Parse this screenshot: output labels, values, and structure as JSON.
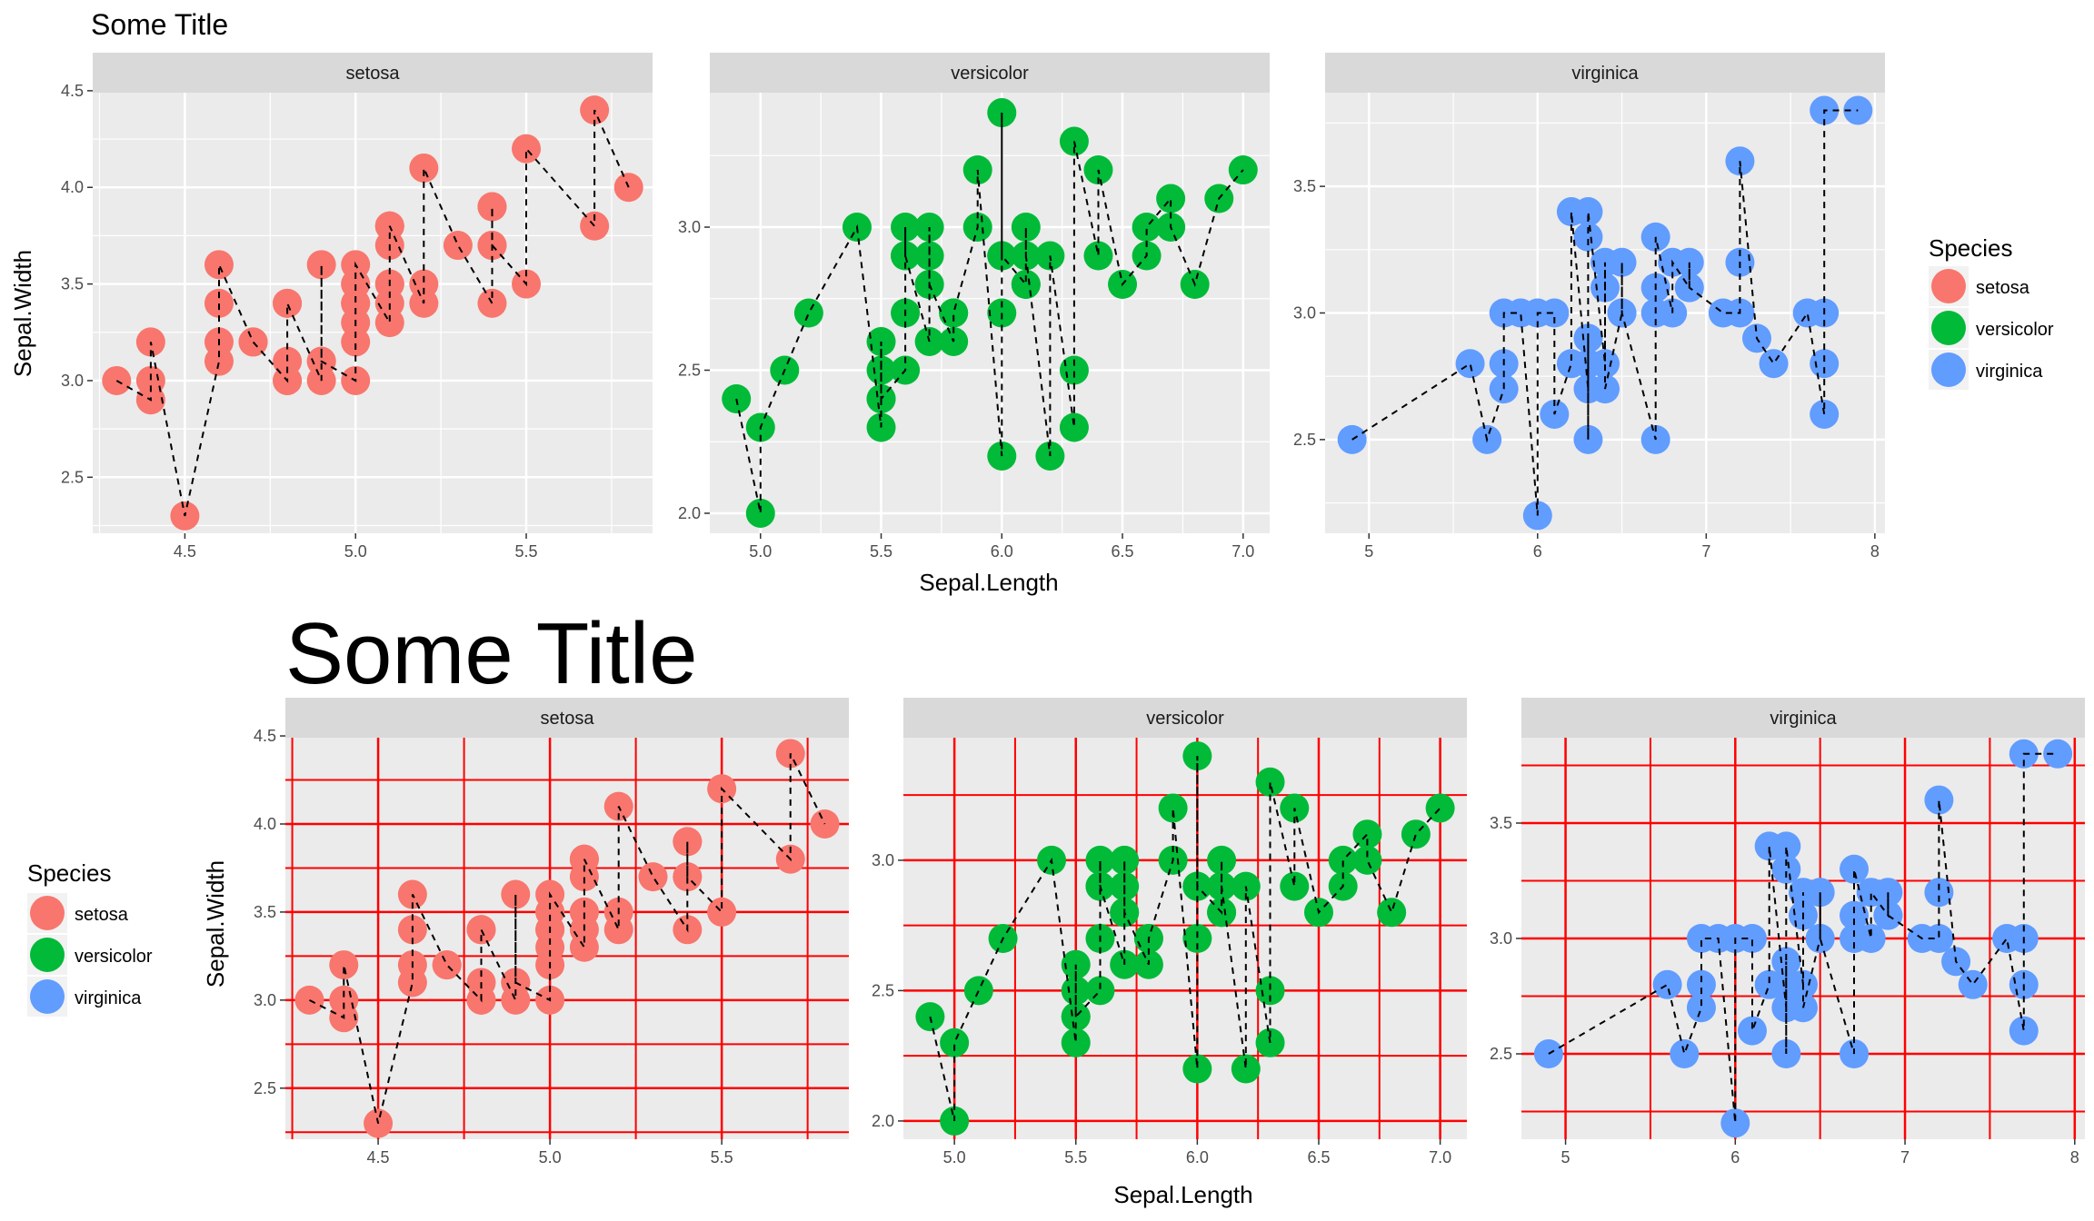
{
  "chart_data": [
    {
      "type": "scatter",
      "title": "Some Title",
      "xlabel": "Sepal.Length",
      "ylabel": "Sepal.Width",
      "grid_color": "#ffffff",
      "legend": {
        "title": "Species",
        "position": "right",
        "entries": [
          {
            "label": "setosa",
            "color": "#F8766D"
          },
          {
            "label": "versicolor",
            "color": "#00BA38"
          },
          {
            "label": "virginica",
            "color": "#619CFF"
          }
        ]
      },
      "facets": [
        {
          "label": "setosa",
          "color": "#F8766D",
          "xlim": [
            4.23,
            5.87
          ],
          "ylim": [
            2.21,
            4.49
          ],
          "xticks": [
            "4.5",
            "5.0",
            "5.5"
          ],
          "yticks": [
            "2.5",
            "3.0",
            "3.5",
            "4.0",
            "4.5"
          ],
          "x": [
            4.3,
            4.4,
            4.4,
            4.4,
            4.5,
            4.6,
            4.6,
            4.6,
            4.6,
            4.7,
            4.7,
            4.8,
            4.8,
            4.8,
            4.8,
            4.8,
            4.9,
            4.9,
            4.9,
            4.9,
            5.0,
            5.0,
            5.0,
            5.0,
            5.0,
            5.0,
            5.0,
            5.0,
            5.1,
            5.1,
            5.1,
            5.1,
            5.1,
            5.1,
            5.1,
            5.1,
            5.2,
            5.2,
            5.2,
            5.3,
            5.4,
            5.4,
            5.4,
            5.4,
            5.4,
            5.5,
            5.5,
            5.7,
            5.7,
            5.8
          ],
          "y": [
            3.0,
            2.9,
            3.0,
            3.2,
            2.3,
            3.1,
            3.2,
            3.4,
            3.6,
            3.2,
            3.2,
            3.0,
            3.0,
            3.1,
            3.4,
            3.4,
            3.0,
            3.1,
            3.6,
            3.1,
            3.0,
            3.2,
            3.3,
            3.4,
            3.4,
            3.5,
            3.5,
            3.6,
            3.3,
            3.4,
            3.5,
            3.5,
            3.7,
            3.8,
            3.8,
            3.8,
            3.4,
            3.5,
            4.1,
            3.7,
            3.4,
            3.7,
            3.9,
            3.9,
            3.7,
            3.5,
            4.2,
            3.8,
            4.4,
            4.0
          ]
        },
        {
          "label": "versicolor",
          "color": "#00BA38",
          "xlim": [
            4.79,
            7.11
          ],
          "ylim": [
            1.93,
            3.47
          ],
          "xticks": [
            "5.0",
            "5.5",
            "6.0",
            "6.5",
            "7.0"
          ],
          "yticks": [
            "2.0",
            "2.5",
            "3.0"
          ],
          "x": [
            4.9,
            5.0,
            5.0,
            5.1,
            5.2,
            5.4,
            5.5,
            5.5,
            5.5,
            5.5,
            5.5,
            5.6,
            5.6,
            5.6,
            5.6,
            5.6,
            5.7,
            5.7,
            5.7,
            5.7,
            5.7,
            5.8,
            5.8,
            5.8,
            5.9,
            5.9,
            6.0,
            6.0,
            6.0,
            6.0,
            6.0,
            6.0,
            6.1,
            6.1,
            6.1,
            6.1,
            6.2,
            6.2,
            6.3,
            6.3,
            6.3,
            6.4,
            6.4,
            6.5,
            6.6,
            6.6,
            6.7,
            6.7,
            6.8,
            6.9,
            7.0
          ],
          "y": [
            2.4,
            2.0,
            2.3,
            2.5,
            2.7,
            3.0,
            2.3,
            2.4,
            2.5,
            2.6,
            2.4,
            2.5,
            2.7,
            2.9,
            3.0,
            2.9,
            2.6,
            2.8,
            2.9,
            3.0,
            2.8,
            2.6,
            2.7,
            2.7,
            3.0,
            3.2,
            2.2,
            2.7,
            2.9,
            3.4,
            2.9,
            2.9,
            2.8,
            2.8,
            3.0,
            2.9,
            2.2,
            2.9,
            2.3,
            2.5,
            3.3,
            2.9,
            3.2,
            2.8,
            2.9,
            3.0,
            3.1,
            3.0,
            2.8,
            3.1,
            3.2
          ]
        },
        {
          "label": "virginica",
          "color": "#619CFF",
          "xlim": [
            4.74,
            8.06
          ],
          "ylim": [
            2.13,
            3.87
          ],
          "xticks": [
            "5",
            "6",
            "7",
            "8"
          ],
          "yticks": [
            "2.5",
            "3.0",
            "3.5"
          ],
          "x": [
            4.9,
            5.6,
            5.7,
            5.8,
            5.8,
            5.8,
            5.9,
            6.0,
            6.0,
            6.1,
            6.1,
            6.2,
            6.2,
            6.3,
            6.3,
            6.3,
            6.3,
            6.3,
            6.3,
            6.4,
            6.4,
            6.4,
            6.4,
            6.5,
            6.5,
            6.5,
            6.7,
            6.7,
            6.7,
            6.7,
            6.8,
            6.8,
            6.9,
            6.9,
            6.9,
            7.1,
            7.2,
            7.2,
            7.2,
            7.3,
            7.4,
            7.6,
            7.7,
            7.7,
            7.7,
            7.7,
            7.9
          ],
          "y": [
            2.5,
            2.8,
            2.5,
            2.7,
            2.8,
            3.0,
            3.0,
            2.2,
            3.0,
            3.0,
            2.6,
            2.8,
            3.4,
            2.7,
            2.8,
            2.9,
            2.5,
            3.3,
            3.4,
            2.8,
            3.1,
            3.2,
            2.7,
            3.0,
            3.2,
            3.0,
            2.5,
            3.0,
            3.1,
            3.3,
            3.0,
            3.2,
            3.1,
            3.2,
            3.1,
            3.0,
            3.0,
            3.2,
            3.6,
            2.9,
            2.8,
            3.0,
            2.6,
            2.8,
            3.0,
            3.8,
            3.8
          ]
        }
      ]
    },
    {
      "type": "scatter",
      "title": "Some Title",
      "xlabel": "Sepal.Length",
      "ylabel": "Sepal.Width",
      "grid_color": "#ff0000",
      "legend": {
        "title": "Species",
        "position": "left",
        "entries": [
          {
            "label": "setosa",
            "color": "#F8766D"
          },
          {
            "label": "versicolor",
            "color": "#00BA38"
          },
          {
            "label": "virginica",
            "color": "#619CFF"
          }
        ]
      },
      "facets": [
        {
          "label": "setosa",
          "color": "#F8766D",
          "xlim": [
            4.23,
            5.87
          ],
          "ylim": [
            2.21,
            4.49
          ],
          "xticks": [
            "4.5",
            "5.0",
            "5.5"
          ],
          "yticks": [
            "2.5",
            "3.0",
            "3.5",
            "4.0",
            "4.5"
          ],
          "x": [
            4.3,
            4.4,
            4.4,
            4.4,
            4.5,
            4.6,
            4.6,
            4.6,
            4.6,
            4.7,
            4.7,
            4.8,
            4.8,
            4.8,
            4.8,
            4.8,
            4.9,
            4.9,
            4.9,
            4.9,
            5.0,
            5.0,
            5.0,
            5.0,
            5.0,
            5.0,
            5.0,
            5.0,
            5.1,
            5.1,
            5.1,
            5.1,
            5.1,
            5.1,
            5.1,
            5.1,
            5.2,
            5.2,
            5.2,
            5.3,
            5.4,
            5.4,
            5.4,
            5.4,
            5.4,
            5.5,
            5.5,
            5.7,
            5.7,
            5.8
          ],
          "y": [
            3.0,
            2.9,
            3.0,
            3.2,
            2.3,
            3.1,
            3.2,
            3.4,
            3.6,
            3.2,
            3.2,
            3.0,
            3.0,
            3.1,
            3.4,
            3.4,
            3.0,
            3.1,
            3.6,
            3.1,
            3.0,
            3.2,
            3.3,
            3.4,
            3.4,
            3.5,
            3.5,
            3.6,
            3.3,
            3.4,
            3.5,
            3.5,
            3.7,
            3.8,
            3.8,
            3.8,
            3.4,
            3.5,
            4.1,
            3.7,
            3.4,
            3.7,
            3.9,
            3.9,
            3.7,
            3.5,
            4.2,
            3.8,
            4.4,
            4.0
          ]
        },
        {
          "label": "versicolor",
          "color": "#00BA38",
          "xlim": [
            4.79,
            7.11
          ],
          "ylim": [
            1.93,
            3.47
          ],
          "xticks": [
            "5.0",
            "5.5",
            "6.0",
            "6.5",
            "7.0"
          ],
          "yticks": [
            "2.0",
            "2.5",
            "3.0"
          ],
          "x": [
            4.9,
            5.0,
            5.0,
            5.1,
            5.2,
            5.4,
            5.5,
            5.5,
            5.5,
            5.5,
            5.5,
            5.6,
            5.6,
            5.6,
            5.6,
            5.6,
            5.7,
            5.7,
            5.7,
            5.7,
            5.7,
            5.8,
            5.8,
            5.8,
            5.9,
            5.9,
            6.0,
            6.0,
            6.0,
            6.0,
            6.0,
            6.0,
            6.1,
            6.1,
            6.1,
            6.1,
            6.2,
            6.2,
            6.3,
            6.3,
            6.3,
            6.4,
            6.4,
            6.5,
            6.6,
            6.6,
            6.7,
            6.7,
            6.8,
            6.9,
            7.0
          ],
          "y": [
            2.4,
            2.0,
            2.3,
            2.5,
            2.7,
            3.0,
            2.3,
            2.4,
            2.5,
            2.6,
            2.4,
            2.5,
            2.7,
            2.9,
            3.0,
            2.9,
            2.6,
            2.8,
            2.9,
            3.0,
            2.8,
            2.6,
            2.7,
            2.7,
            3.0,
            3.2,
            2.2,
            2.7,
            2.9,
            3.4,
            2.9,
            2.9,
            2.8,
            2.8,
            3.0,
            2.9,
            2.2,
            2.9,
            2.3,
            2.5,
            3.3,
            2.9,
            3.2,
            2.8,
            2.9,
            3.0,
            3.1,
            3.0,
            2.8,
            3.1,
            3.2
          ]
        },
        {
          "label": "virginica",
          "color": "#619CFF",
          "xlim": [
            4.74,
            8.06
          ],
          "ylim": [
            2.13,
            3.87
          ],
          "xticks": [
            "5",
            "6",
            "7",
            "8"
          ],
          "yticks": [
            "2.5",
            "3.0",
            "3.5"
          ],
          "x": [
            4.9,
            5.6,
            5.7,
            5.8,
            5.8,
            5.8,
            5.9,
            6.0,
            6.0,
            6.1,
            6.1,
            6.2,
            6.2,
            6.3,
            6.3,
            6.3,
            6.3,
            6.3,
            6.3,
            6.4,
            6.4,
            6.4,
            6.4,
            6.5,
            6.5,
            6.5,
            6.7,
            6.7,
            6.7,
            6.7,
            6.8,
            6.8,
            6.9,
            6.9,
            6.9,
            7.1,
            7.2,
            7.2,
            7.2,
            7.3,
            7.4,
            7.6,
            7.7,
            7.7,
            7.7,
            7.7,
            7.9
          ],
          "y": [
            2.5,
            2.8,
            2.5,
            2.7,
            2.8,
            3.0,
            3.0,
            2.2,
            3.0,
            3.0,
            2.6,
            2.8,
            3.4,
            2.7,
            2.8,
            2.9,
            2.5,
            3.3,
            3.4,
            2.8,
            3.1,
            3.2,
            2.7,
            3.0,
            3.2,
            3.0,
            2.5,
            3.0,
            3.1,
            3.3,
            3.0,
            3.2,
            3.1,
            3.2,
            3.1,
            3.0,
            3.0,
            3.2,
            3.6,
            2.9,
            2.8,
            3.0,
            2.6,
            2.8,
            3.0,
            3.8,
            3.8
          ]
        }
      ]
    }
  ]
}
